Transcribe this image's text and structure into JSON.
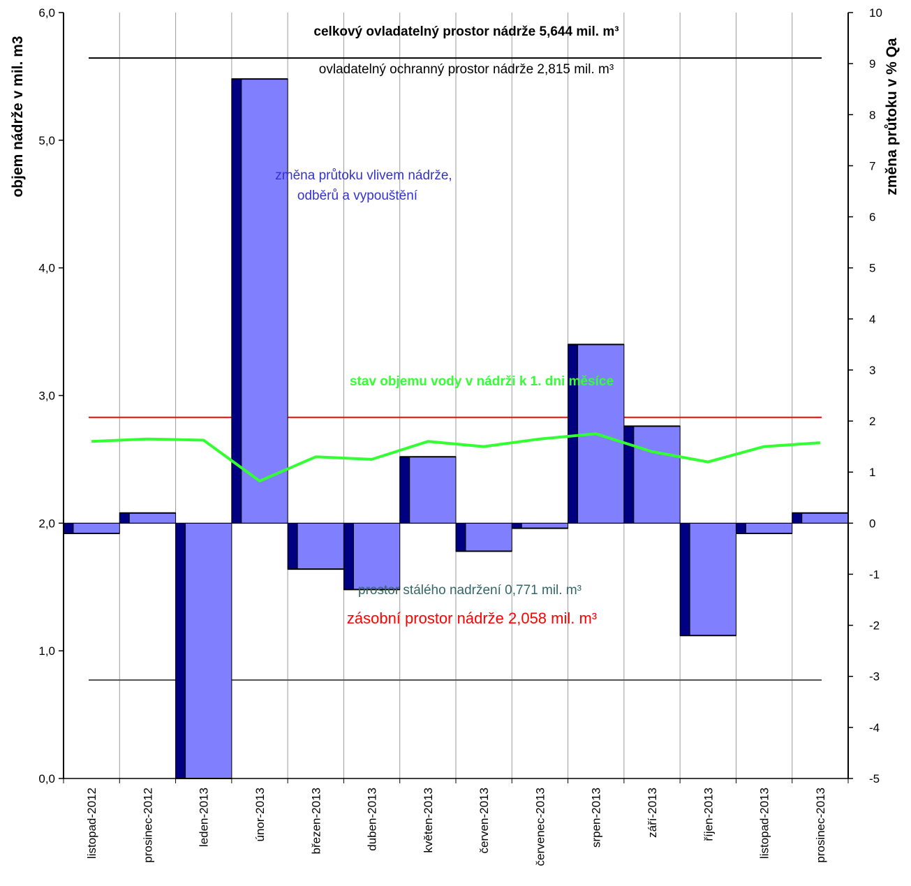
{
  "chart_data": {
    "type": "bar",
    "categories": [
      "listopad-2012",
      "prosinec-2012",
      "leden-2013",
      "únor-2013",
      "březen-2013",
      "duben-2013",
      "květen-2013",
      "červen-2013",
      "červenec-2013",
      "srpen-2013",
      "září-2013",
      "říjen-2013",
      "listopad-2013",
      "prosinec-2013"
    ],
    "left_axis": {
      "label": "objem nádrže v mil. m3",
      "ylim": [
        0,
        6
      ],
      "ticks": [
        "0,0",
        "1,0",
        "2,0",
        "3,0",
        "4,0",
        "5,0",
        "6,0"
      ]
    },
    "right_axis": {
      "label": "změna průtoku v % Qa",
      "ylim": [
        -5,
        10
      ],
      "ticks": [
        "-5",
        "-4",
        "-3",
        "-2",
        "-1",
        "0",
        "1",
        "2",
        "3",
        "4",
        "5",
        "6",
        "7",
        "8",
        "9",
        "10"
      ]
    },
    "bar_series": {
      "name": "změna průtoku vlivem nádrže, odběrů a vypouštění",
      "axis": "right",
      "values": [
        -0.2,
        0.2,
        -5.0,
        8.7,
        -0.9,
        -1.3,
        1.3,
        -0.55,
        -0.1,
        3.5,
        1.9,
        -2.2,
        -0.2,
        0.2
      ],
      "front_color": "#8080FF",
      "side_color": "#000080"
    },
    "line_series": {
      "name": "stav objemu vody v  nádrži k 1. dni měsíce",
      "axis": "left",
      "values": [
        2.64,
        2.66,
        2.65,
        2.33,
        2.5,
        2.5,
        2.64,
        2.6,
        2.66,
        2.7,
        2.56,
        2.48,
        2.6,
        2.63
      ],
      "points": [
        {
          "x": 0.5,
          "y": 2.64
        },
        {
          "x": 1.5,
          "y": 2.66
        },
        {
          "x": 2.5,
          "y": 2.65
        },
        {
          "x": 3.5,
          "y": 2.33
        },
        {
          "x": 4.5,
          "y": 2.52
        },
        {
          "x": 5.5,
          "y": 2.5
        },
        {
          "x": 6.5,
          "y": 2.64
        },
        {
          "x": 7.5,
          "y": 2.6
        },
        {
          "x": 8.5,
          "y": 2.66
        },
        {
          "x": 9.5,
          "y": 2.7
        },
        {
          "x": 10.5,
          "y": 2.56
        },
        {
          "x": 11.5,
          "y": 2.48
        },
        {
          "x": 12.5,
          "y": 2.6
        },
        {
          "x": 13.5,
          "y": 2.63
        }
      ],
      "color": "#33FF33"
    },
    "reference_lines": [
      {
        "name": "celkový ovladatelný prostor",
        "y": 5.644,
        "color": "#000000"
      },
      {
        "name": "zásobní prostor",
        "y": 2.829,
        "color": "#FF0000"
      },
      {
        "name": "prostor stálého nadržení",
        "y": 0.771,
        "color": "#555555"
      }
    ],
    "annotations": {
      "total_space": "celkový ovladatelný prostor nádrže 5,644 mil. m³",
      "protective_space": "ovladatelný ochranný prostor nádrže 2,815 mil. m³",
      "flow_change_line1": "změna průtoku vlivem nádrže,",
      "flow_change_line2": "odběrů a vypouštění",
      "water_volume": "stav objemu vody v  nádrži k 1. dni měsíce",
      "storage_space": "zásobní prostor nádrže 2,058 mil. m³",
      "permanent_space": "prostor stálého nadržení 0,771 mil. m³"
    },
    "annotation_colors": {
      "total_space": "#000000",
      "protective_space": "#000000",
      "flow_change": "#3333CC",
      "water_volume": "#33FF33",
      "storage_space": "#FF0000",
      "permanent_space": "#336666"
    },
    "grid": "vertical category separators"
  }
}
